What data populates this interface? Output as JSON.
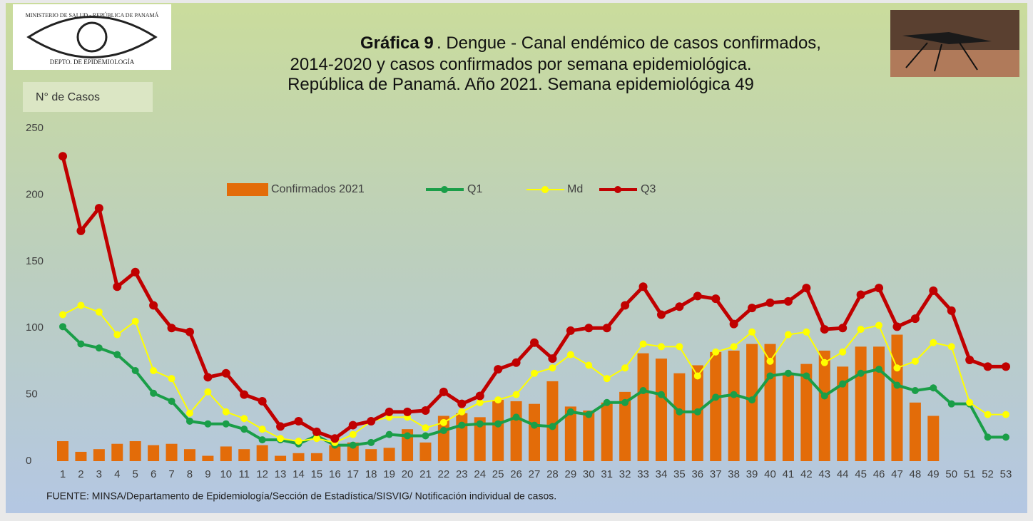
{
  "chart_data": {
    "type": "bar_line",
    "title": [
      "Gráfica 9",
      ". Dengue - Canal endémico de casos confirmados,",
      "2014-2020 y casos confirmados por semana epidemiológica.",
      "República de Panamá. Año 2021. Semana epidemiológica 49"
    ],
    "logo": {
      "top": "MINISTERIO DE SALUD - REPÚBLICA DE PANAMÁ",
      "bottom": "DEPTO. DE EPIDEMIOLOGÍA"
    },
    "y_label": "N° de Casos",
    "source": "FUENTE: MINSA/Departamento de Epidemiología/Sección de Estadística/SISVIG/ Notificación individual de casos.",
    "categories": [
      "1",
      "2",
      "3",
      "4",
      "5",
      "6",
      "7",
      "8",
      "9",
      "10",
      "11",
      "12",
      "13",
      "14",
      "15",
      "16",
      "17",
      "18",
      "19",
      "20",
      "21",
      "22",
      "23",
      "24",
      "25",
      "26",
      "27",
      "28",
      "29",
      "30",
      "31",
      "32",
      "33",
      "34",
      "35",
      "36",
      "37",
      "38",
      "39",
      "40",
      "41",
      "42",
      "43",
      "44",
      "45",
      "46",
      "47",
      "48",
      "49",
      "50",
      "51",
      "52",
      "53"
    ],
    "ylim": [
      0,
      250
    ],
    "yticks": [
      0,
      50,
      100,
      150,
      200,
      250
    ],
    "grid": false,
    "legend": "top",
    "series": [
      {
        "name": "Confirmados 2021",
        "type": "bar",
        "color": "#e36c09",
        "values": [
          15,
          7,
          9,
          13,
          15,
          12,
          13,
          9,
          4,
          11,
          9,
          12,
          4,
          6,
          6,
          12,
          14,
          9,
          10,
          24,
          14,
          34,
          36,
          33,
          46,
          45,
          43,
          60,
          41,
          38,
          44,
          52,
          81,
          77,
          66,
          72,
          82,
          83,
          88,
          88,
          66,
          73,
          83,
          71,
          86,
          86,
          95,
          44,
          34,
          null,
          null,
          null,
          null
        ]
      },
      {
        "name": "Q1",
        "type": "line",
        "color": "#1a9e48",
        "values": [
          101,
          88,
          85,
          80,
          68,
          51,
          45,
          30,
          28,
          28,
          24,
          16,
          16,
          13,
          19,
          12,
          12,
          14,
          20,
          19,
          19,
          23,
          27,
          28,
          28,
          33,
          27,
          26,
          37,
          35,
          44,
          44,
          53,
          50,
          37,
          37,
          48,
          50,
          46,
          64,
          66,
          64,
          49,
          58,
          66,
          69,
          57,
          53,
          55,
          43,
          43,
          18,
          18
        ]
      },
      {
        "name": "Md",
        "type": "line",
        "color": "#ffff00",
        "values": [
          110,
          117,
          112,
          95,
          105,
          68,
          62,
          36,
          52,
          37,
          32,
          24,
          17,
          15,
          17,
          14,
          20,
          30,
          33,
          33,
          25,
          29,
          37,
          44,
          46,
          50,
          66,
          70,
          80,
          72,
          62,
          70,
          88,
          86,
          86,
          64,
          82,
          86,
          97,
          75,
          95,
          97,
          74,
          82,
          99,
          102,
          70,
          75,
          89,
          86,
          44,
          35,
          35
        ]
      },
      {
        "name": "Q3",
        "type": "line",
        "color": "#c00000",
        "values": [
          229,
          173,
          190,
          131,
          142,
          117,
          100,
          97,
          63,
          66,
          50,
          45,
          26,
          30,
          22,
          17,
          27,
          30,
          37,
          37,
          38,
          52,
          43,
          49,
          69,
          74,
          89,
          77,
          98,
          100,
          100,
          117,
          131,
          110,
          116,
          124,
          122,
          103,
          115,
          119,
          120,
          130,
          99,
          100,
          125,
          130,
          101,
          107,
          128,
          113,
          76,
          71,
          71
        ]
      }
    ]
  }
}
